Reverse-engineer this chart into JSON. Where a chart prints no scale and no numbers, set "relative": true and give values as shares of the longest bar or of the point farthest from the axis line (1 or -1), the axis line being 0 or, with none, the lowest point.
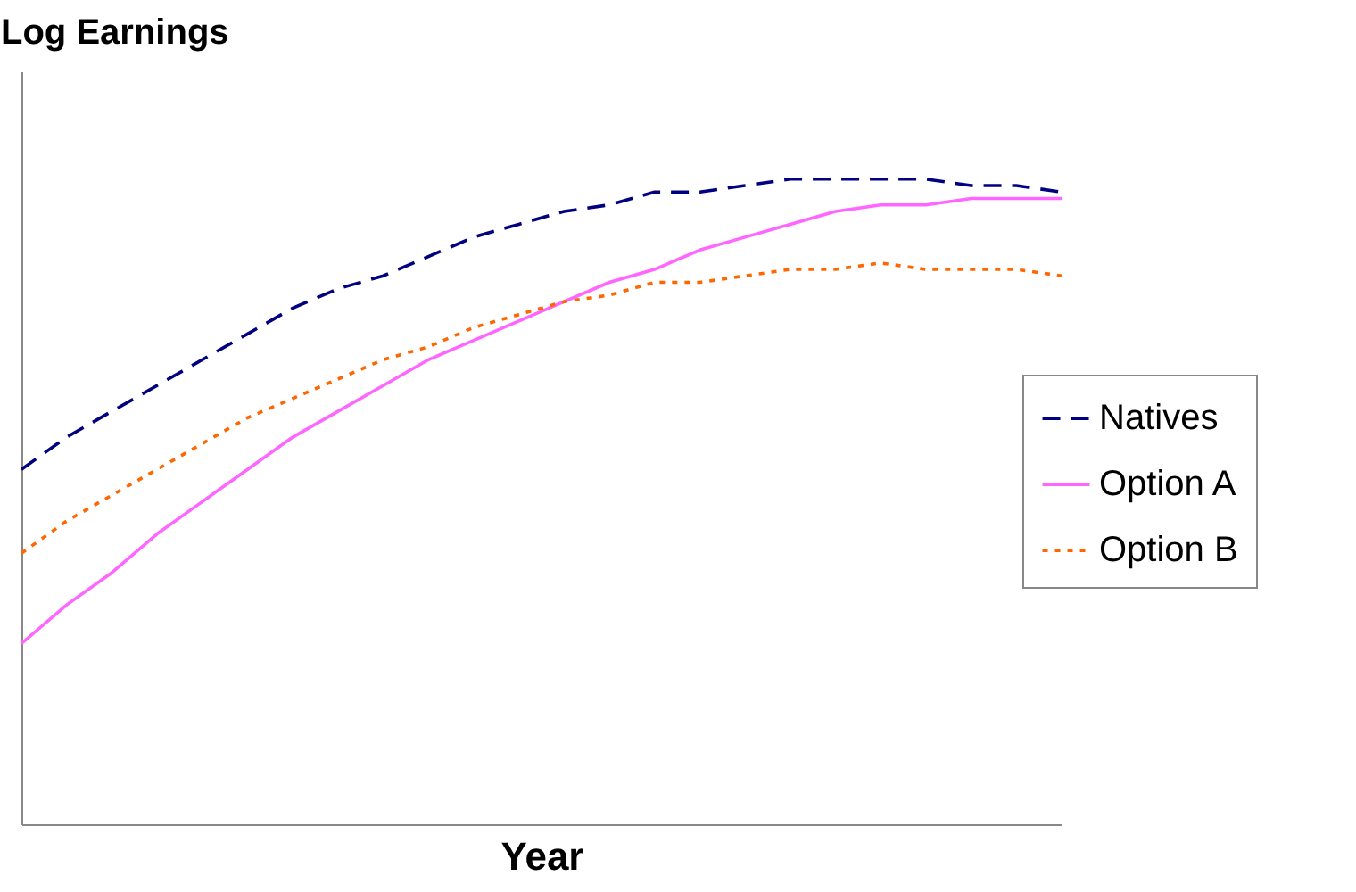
{
  "chart_data": {
    "type": "line",
    "relative": true,
    "ylabel": "Log Earnings",
    "xlabel": "Year",
    "legend": "right",
    "grid": false,
    "categories": [
      null,
      null,
      null,
      null,
      null,
      null,
      null,
      null,
      null,
      null,
      null,
      null,
      null,
      null,
      null,
      null,
      null,
      null,
      null,
      null,
      null,
      null,
      null,
      null
    ],
    "series": [
      {
        "name": "Natives",
        "color": "#000080",
        "line_style": "dashed",
        "values": [
          0.55,
          0.6,
          0.64,
          0.68,
          0.72,
          0.76,
          0.8,
          0.83,
          0.85,
          0.88,
          0.91,
          0.93,
          0.95,
          0.96,
          0.98,
          0.98,
          0.99,
          1,
          1,
          1,
          1,
          0.99,
          0.99,
          0.98
        ]
      },
      {
        "name": "Option A",
        "color": "#ff66ff",
        "line_style": "solid",
        "values": [
          0.28,
          0.34,
          0.39,
          0.45,
          0.5,
          0.55,
          0.6,
          0.64,
          0.68,
          0.72,
          0.75,
          0.78,
          0.81,
          0.84,
          0.86,
          0.89,
          0.91,
          0.93,
          0.95,
          0.96,
          0.96,
          0.97,
          0.97,
          0.97
        ]
      },
      {
        "name": "Option B",
        "color": "#ff6600",
        "line_style": "dotted",
        "values": [
          0.42,
          0.47,
          0.51,
          0.55,
          0.59,
          0.63,
          0.66,
          0.69,
          0.72,
          0.74,
          0.77,
          0.79,
          0.81,
          0.82,
          0.84,
          0.84,
          0.85,
          0.86,
          0.86,
          0.87,
          0.86,
          0.86,
          0.86,
          0.85
        ]
      }
    ]
  }
}
